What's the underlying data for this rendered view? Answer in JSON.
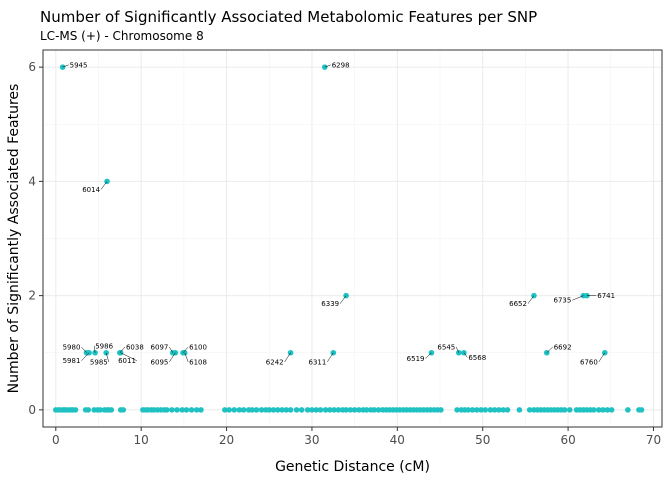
{
  "chart_data": {
    "type": "scatter",
    "title": "Number of Significantly Associated Metabolomic Features per SNP",
    "subtitle": "LC-MS (+) - Chromosome 8",
    "xlabel": "Genetic Distance (cM)",
    "ylabel": "Number of Significantly Associated Features",
    "xlim": [
      -1.5,
      71.0
    ],
    "ylim": [
      -0.3,
      6.3
    ],
    "x_ticks": [
      0,
      10,
      20,
      30,
      40,
      50,
      60,
      70
    ],
    "y_ticks": [
      0,
      2,
      4,
      6
    ],
    "grid": true,
    "legend": "none",
    "point_color": "#1fc1c3",
    "labeled_points": [
      {
        "x": 0.8,
        "y": 6,
        "label": "5945",
        "anchor": "start",
        "lx": 1.5,
        "ly": 6.04
      },
      {
        "x": 31.5,
        "y": 6,
        "label": "6298",
        "anchor": "start",
        "lx": 32.2,
        "ly": 6.04
      },
      {
        "x": 6.0,
        "y": 4,
        "label": "6014",
        "anchor": "end",
        "lx": 5.3,
        "ly": 3.86
      },
      {
        "x": 34.0,
        "y": 2,
        "label": "6339",
        "anchor": "end",
        "lx": 33.3,
        "ly": 1.86
      },
      {
        "x": 56.0,
        "y": 2,
        "label": "6652",
        "anchor": "end",
        "lx": 55.3,
        "ly": 1.86
      },
      {
        "x": 61.8,
        "y": 2,
        "label": "6735",
        "anchor": "end",
        "lx": 60.5,
        "ly": 1.92
      },
      {
        "x": 62.2,
        "y": 2,
        "label": "6741",
        "anchor": "start",
        "lx": 63.3,
        "ly": 2.0
      },
      {
        "x": 3.6,
        "y": 1,
        "label": "5980",
        "anchor": "end",
        "lx": 3.0,
        "ly": 1.1
      },
      {
        "x": 3.9,
        "y": 1,
        "label": "5981",
        "anchor": "end",
        "lx": 3.0,
        "ly": 0.86
      },
      {
        "x": 4.6,
        "y": 1,
        "label": "5986",
        "anchor": "start",
        "lx": 4.5,
        "ly": 1.12
      },
      {
        "x": 5.9,
        "y": 1,
        "label": "5985",
        "anchor": "end",
        "lx": 6.2,
        "ly": 0.84
      },
      {
        "x": 7.6,
        "y": 1,
        "label": "6011",
        "anchor": "end",
        "lx": 9.5,
        "ly": 0.86
      },
      {
        "x": 7.5,
        "y": 1,
        "label": "6038",
        "anchor": "start",
        "lx": 8.1,
        "ly": 1.1
      },
      {
        "x": 13.7,
        "y": 1,
        "label": "6097",
        "anchor": "end",
        "lx": 13.3,
        "ly": 1.1
      },
      {
        "x": 14.0,
        "y": 1,
        "label": "6095",
        "anchor": "end",
        "lx": 13.3,
        "ly": 0.84
      },
      {
        "x": 14.9,
        "y": 1,
        "label": "6100",
        "anchor": "start",
        "lx": 15.5,
        "ly": 1.1
      },
      {
        "x": 15.1,
        "y": 1,
        "label": "6108",
        "anchor": "start",
        "lx": 15.5,
        "ly": 0.84
      },
      {
        "x": 27.5,
        "y": 1,
        "label": "6242",
        "anchor": "end",
        "lx": 26.8,
        "ly": 0.84
      },
      {
        "x": 32.5,
        "y": 1,
        "label": "6311",
        "anchor": "end",
        "lx": 31.8,
        "ly": 0.84
      },
      {
        "x": 44.0,
        "y": 1,
        "label": "6519",
        "anchor": "end",
        "lx": 43.3,
        "ly": 0.9
      },
      {
        "x": 47.2,
        "y": 1,
        "label": "6545",
        "anchor": "end",
        "lx": 46.9,
        "ly": 1.1
      },
      {
        "x": 47.8,
        "y": 1,
        "label": "6568",
        "anchor": "start",
        "lx": 48.2,
        "ly": 0.92
      },
      {
        "x": 57.5,
        "y": 1,
        "label": "6692",
        "anchor": "start",
        "lx": 58.2,
        "ly": 1.1
      },
      {
        "x": 64.3,
        "y": 1,
        "label": "6760",
        "anchor": "end",
        "lx": 63.6,
        "ly": 0.84
      }
    ],
    "zero_points_x": [
      0,
      0.3,
      0.5,
      0.8,
      1.0,
      1.2,
      1.5,
      1.8,
      2.0,
      2.3,
      3.5,
      3.8,
      4.5,
      4.9,
      5.2,
      5.7,
      6.0,
      6.2,
      6.5,
      7.6,
      7.9,
      10.2,
      10.5,
      10.8,
      11.2,
      11.5,
      11.9,
      12.3,
      12.7,
      13.0,
      13.6,
      14.2,
      14.8,
      15.3,
      15.9,
      16.5,
      17.0,
      19.8,
      20.3,
      20.9,
      21.5,
      22.0,
      22.6,
      23.0,
      23.5,
      24.1,
      24.6,
      25.0,
      25.5,
      26.0,
      26.5,
      27.0,
      27.5,
      28.2,
      28.8,
      29.5,
      30.0,
      30.5,
      31.0,
      31.6,
      32.1,
      32.6,
      33.1,
      33.6,
      34.0,
      34.5,
      35.0,
      35.5,
      36.0,
      36.4,
      36.9,
      37.3,
      37.8,
      38.3,
      38.7,
      39.1,
      39.5,
      39.9,
      40.3,
      40.7,
      41.1,
      41.5,
      41.9,
      42.3,
      42.7,
      43.1,
      43.5,
      43.9,
      44.3,
      44.7,
      45.1,
      47.0,
      47.5,
      47.9,
      48.3,
      48.8,
      49.3,
      49.8,
      50.3,
      50.9,
      51.4,
      51.9,
      52.4,
      52.9,
      54.3,
      55.5,
      56.0,
      56.4,
      56.8,
      57.2,
      57.6,
      58.0,
      58.4,
      58.8,
      59.2,
      59.6,
      60.2,
      61.0,
      61.4,
      61.8,
      62.2,
      62.6,
      63.0,
      63.6,
      64.1,
      64.6,
      65.1,
      67.0,
      68.3,
      68.6
    ]
  }
}
